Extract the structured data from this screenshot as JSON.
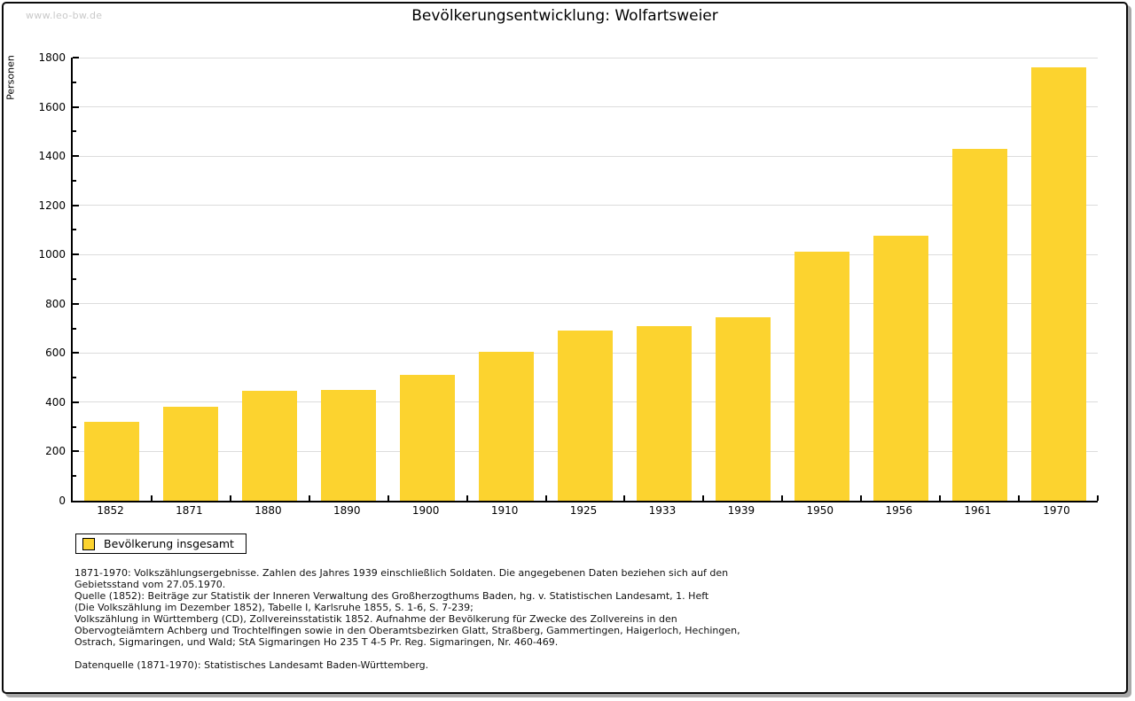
{
  "page": {
    "watermark": "www.leo-bw.de",
    "footnotes": [
      "1871-1970: Volkszählungsergebnisse. Zahlen des Jahres 1939 einschließlich Soldaten. Die angegebenen Daten beziehen sich auf den",
      "Gebietsstand vom 27.05.1970.",
      "Quelle (1852): Beiträge zur Statistik der Inneren Verwaltung des Großherzogthums Baden, hg. v. Statistischen Landesamt, 1. Heft",
      "(Die Volkszählung im Dezember 1852), Tabelle I, Karlsruhe 1855, S. 1-6, S. 7-239;",
      "Volkszählung in Württemberg (CD), Zollvereinsstatistik 1852. Aufnahme der Bevölkerung für Zwecke des Zollvereins in den",
      "Obervogteiämtern Achberg und Trochtelfingen sowie in den Oberamtsbezirken Glatt, Straßberg, Gammertingen, Haigerloch, Hechingen,",
      "Ostrach, Sigmaringen, und Wald; StA Sigmaringen Ho 235 T 4-5 Pr. Reg. Sigmaringen, Nr. 460-469."
    ],
    "source_line": "Datenquelle (1871-1970): Statistisches Landesamt Baden-Württemberg."
  },
  "chart_data": {
    "type": "bar",
    "title": "Bevölkerungsentwicklung: Wolfartsweier",
    "xlabel": "",
    "ylabel": "Personen",
    "categories": [
      "1852",
      "1871",
      "1880",
      "1890",
      "1900",
      "1910",
      "1925",
      "1933",
      "1939",
      "1950",
      "1956",
      "1961",
      "1970"
    ],
    "values": [
      320,
      380,
      445,
      450,
      510,
      605,
      690,
      710,
      745,
      1010,
      1075,
      1430,
      1760
    ],
    "ylim": [
      0,
      1800
    ],
    "ytick_step": 200,
    "minor_ytick_step": 100,
    "grid": "horizontal-major-only",
    "tick_direction": "in",
    "legend": {
      "label": "Bevölkerung insgesamt",
      "position": "below-chart-left",
      "swatch_shape": "square"
    },
    "colors": {
      "bar": "#fcd32f",
      "grid": "#dcdcdc",
      "axis": "#000000",
      "watermark": "#c9c9c9",
      "text": "#000000"
    }
  }
}
